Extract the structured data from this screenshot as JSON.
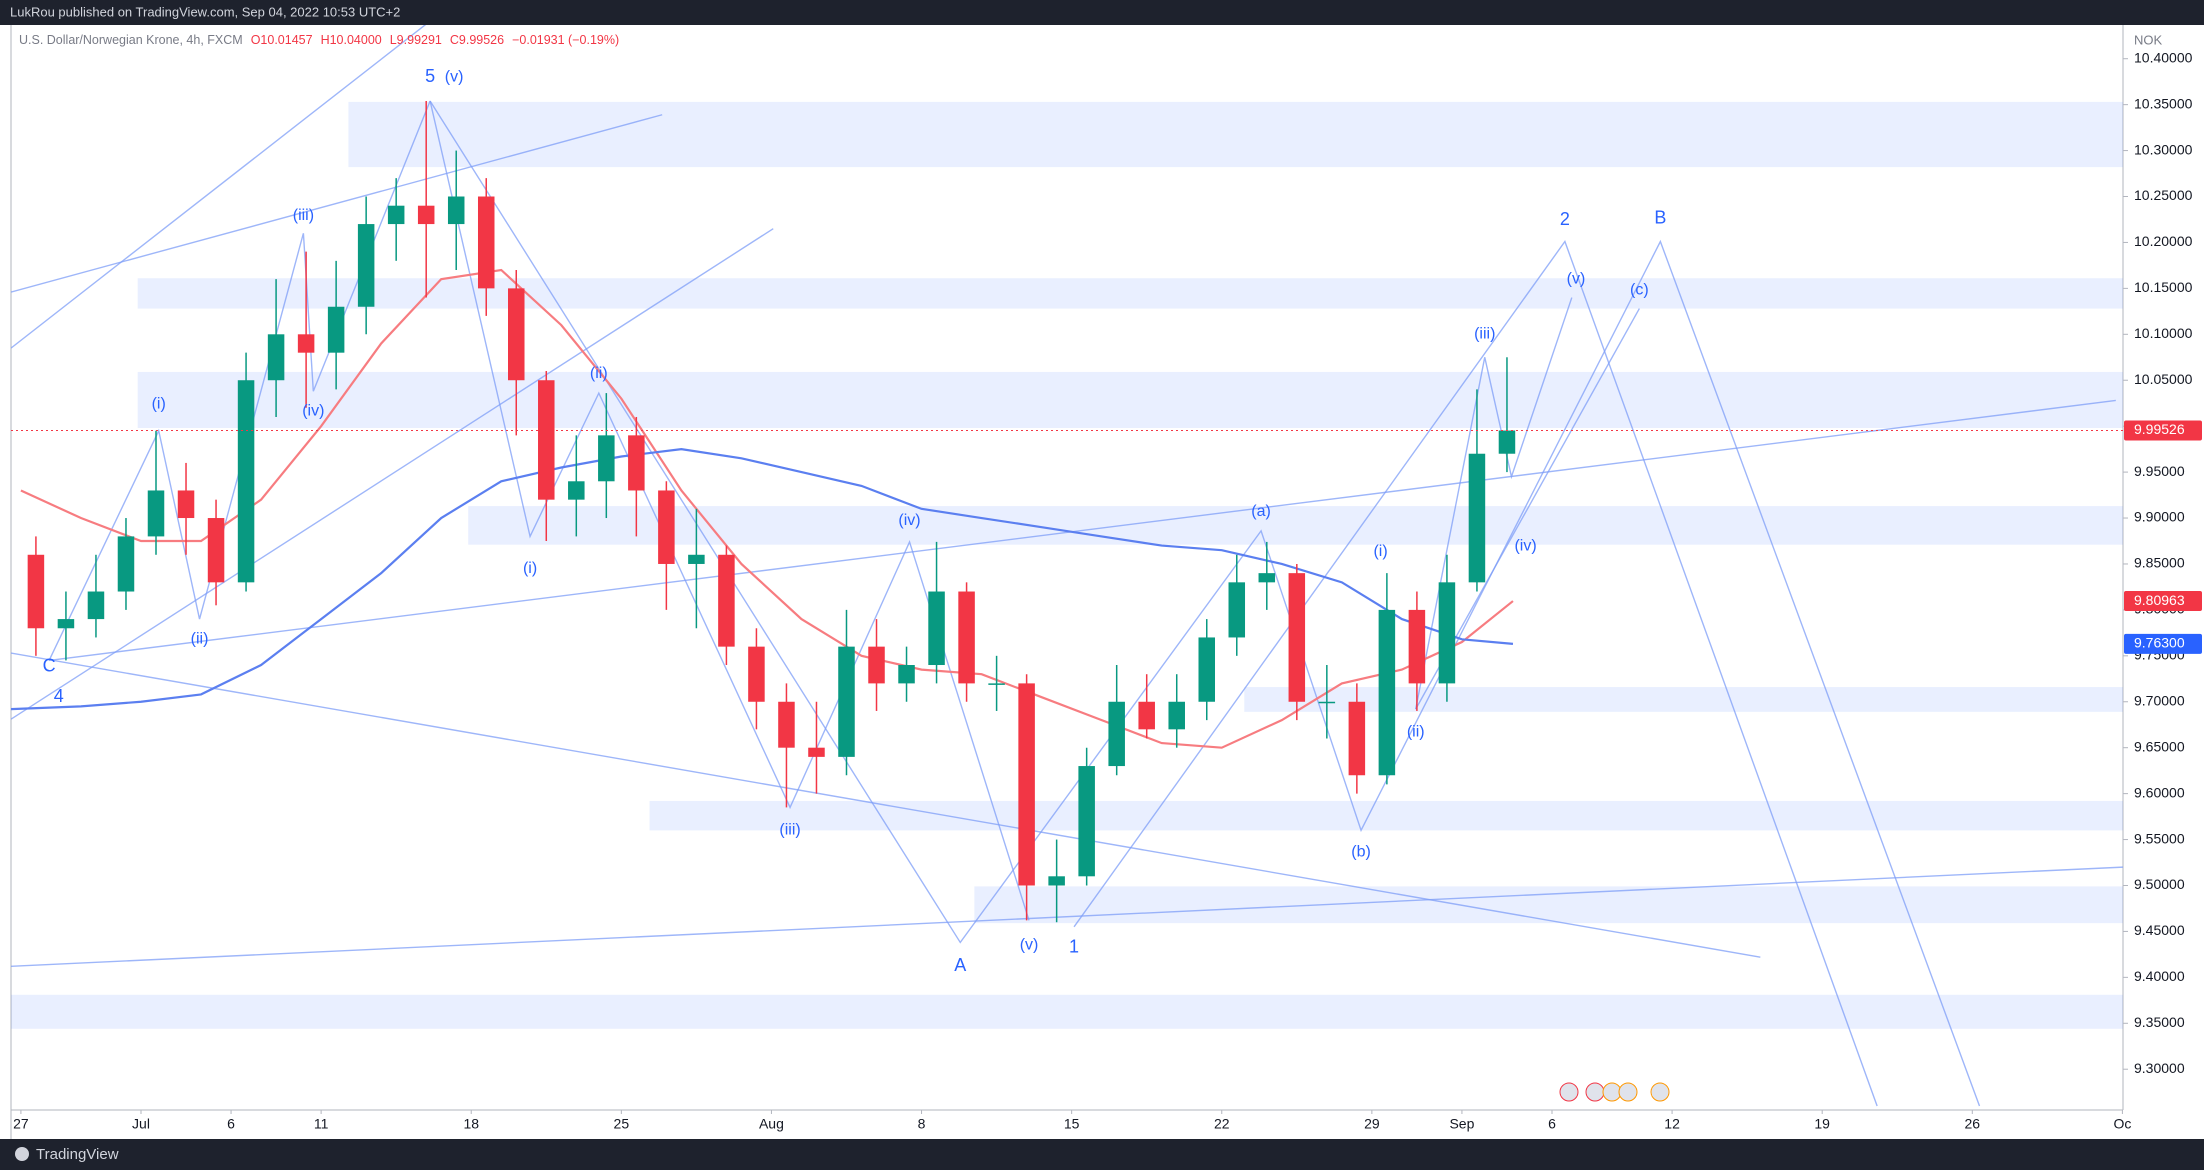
{
  "header": {
    "publisher": "LukRou published on TradingView.com, Sep 04, 2022 10:53 UTC+2",
    "symbol": "U.S. Dollar/Norwegian Krone, 4h, FXCM",
    "ohlc": [
      "O10.01457",
      "H10.04000",
      "L9.99291",
      "C9.99526",
      "−0.01931 (−0.19%)"
    ],
    "currency": "NOK"
  },
  "footer": {
    "brand": "TradingView"
  },
  "chart_data": {
    "type": "candlestick",
    "xlim": [
      -0.33,
      70.02
    ],
    "ylim": [
      9.2556,
      10.4367
    ],
    "grid": false,
    "xticks": [
      {
        "value": 0,
        "label": "27"
      },
      {
        "value": 4,
        "label": "Jul"
      },
      {
        "value": 7,
        "label": "6"
      },
      {
        "value": 10,
        "label": "11"
      },
      {
        "value": 15,
        "label": "18"
      },
      {
        "value": 20,
        "label": "25"
      },
      {
        "value": 25,
        "label": "Aug"
      },
      {
        "value": 30,
        "label": "8"
      },
      {
        "value": 35,
        "label": "15"
      },
      {
        "value": 40,
        "label": "22"
      },
      {
        "value": 45,
        "label": "29"
      },
      {
        "value": 48,
        "label": "Sep"
      },
      {
        "value": 51,
        "label": "6"
      },
      {
        "value": 55,
        "label": "12"
      },
      {
        "value": 60,
        "label": "19"
      },
      {
        "value": 65,
        "label": "26"
      },
      {
        "value": 70,
        "label": "Oc"
      }
    ],
    "yticks": [
      {
        "value": 9.3,
        "label": "9.30000"
      },
      {
        "value": 9.35,
        "label": "9.35000"
      },
      {
        "value": 9.4,
        "label": "9.40000"
      },
      {
        "value": 9.45,
        "label": "9.45000"
      },
      {
        "value": 9.5,
        "label": "9.50000"
      },
      {
        "value": 9.55,
        "label": "9.55000"
      },
      {
        "value": 9.6,
        "label": "9.60000"
      },
      {
        "value": 9.65,
        "label": "9.65000"
      },
      {
        "value": 9.7,
        "label": "9.70000"
      },
      {
        "value": 9.75,
        "label": "9.75000"
      },
      {
        "value": 9.8,
        "label": "9.80000"
      },
      {
        "value": 9.85,
        "label": "9.85000"
      },
      {
        "value": 9.9,
        "label": "9.90000"
      },
      {
        "value": 9.95,
        "label": "9.95000"
      },
      {
        "value": 10,
        "label": "10.00000"
      },
      {
        "value": 10.05,
        "label": "10.05000"
      },
      {
        "value": 10.1,
        "label": "10.10000"
      },
      {
        "value": 10.15,
        "label": "10.15000"
      },
      {
        "value": 10.2,
        "label": "10.20000"
      },
      {
        "value": 10.25,
        "label": "10.25000"
      },
      {
        "value": 10.3,
        "label": "10.30000"
      },
      {
        "value": 10.35,
        "label": "10.35000"
      },
      {
        "value": 10.4,
        "label": "10.40000"
      }
    ],
    "up_color": "#089981",
    "down_color": "#f23645",
    "x": [
      0.5,
      1.5,
      2.5,
      3.5,
      4.5,
      5.5,
      6.5,
      7.5,
      8.5,
      9.5,
      10.5,
      11.5,
      12.5,
      13.5,
      14.5,
      15.5,
      16.5,
      17.5,
      18.5,
      19.5,
      20.5,
      21.5,
      22.5,
      23.5,
      24.5,
      25.5,
      26.5,
      27.5,
      28.5,
      29.5,
      30.5,
      31.5,
      32.5,
      33.5,
      34.5,
      35.5,
      36.5,
      37.5,
      38.5,
      39.5,
      40.5,
      41.5,
      42.5,
      43.5,
      44.5,
      45.5,
      46.5,
      47.5,
      48.5,
      49.5
    ],
    "open": [
      9.86,
      9.78,
      9.79,
      9.82,
      9.88,
      9.93,
      9.9,
      9.83,
      10.05,
      10.1,
      10.08,
      10.13,
      10.22,
      10.24,
      10.22,
      10.25,
      10.15,
      10.05,
      9.92,
      9.94,
      9.99,
      9.93,
      9.85,
      9.86,
      9.76,
      9.7,
      9.65,
      9.64,
      9.76,
      9.72,
      9.74,
      9.82,
      9.72,
      9.72,
      9.5,
      9.51,
      9.63,
      9.7,
      9.67,
      9.7,
      9.77,
      9.83,
      9.84,
      9.7,
      9.7,
      9.62,
      9.8,
      9.72,
      9.83,
      9.97
    ],
    "high": [
      9.88,
      9.82,
      9.86,
      9.9,
      9.995,
      9.96,
      9.92,
      10.08,
      10.16,
      10.19,
      10.18,
      10.25,
      10.27,
      10.354,
      10.3,
      10.27,
      10.17,
      10.06,
      9.99,
      10.036,
      10.01,
      9.94,
      9.91,
      9.87,
      9.78,
      9.72,
      9.7,
      9.8,
      9.79,
      9.76,
      9.874,
      9.83,
      9.75,
      9.73,
      9.55,
      9.65,
      9.74,
      9.73,
      9.73,
      9.79,
      9.86,
      9.874,
      9.85,
      9.74,
      9.72,
      9.84,
      9.82,
      9.86,
      10.04,
      10.075
    ],
    "low": [
      9.75,
      9.745,
      9.77,
      9.8,
      9.86,
      9.86,
      9.805,
      9.82,
      10.01,
      10.02,
      10.04,
      10.1,
      10.18,
      10.14,
      10.17,
      10.12,
      9.99,
      9.875,
      9.88,
      9.9,
      9.88,
      9.8,
      9.78,
      9.74,
      9.67,
      9.585,
      9.6,
      9.62,
      9.69,
      9.7,
      9.72,
      9.7,
      9.69,
      9.462,
      9.46,
      9.5,
      9.62,
      9.66,
      9.65,
      9.68,
      9.75,
      9.8,
      9.68,
      9.66,
      9.6,
      9.61,
      9.69,
      9.7,
      9.82,
      9.95
    ],
    "close": [
      9.78,
      9.79,
      9.82,
      9.88,
      9.93,
      9.9,
      9.83,
      10.05,
      10.1,
      10.08,
      10.13,
      10.22,
      10.24,
      10.22,
      10.25,
      10.15,
      10.05,
      9.92,
      9.94,
      9.99,
      9.93,
      9.85,
      9.86,
      9.76,
      9.7,
      9.65,
      9.64,
      9.76,
      9.72,
      9.74,
      9.82,
      9.72,
      9.72,
      9.5,
      9.51,
      9.63,
      9.7,
      9.67,
      9.7,
      9.77,
      9.83,
      9.84,
      9.7,
      9.7,
      9.62,
      9.8,
      9.72,
      9.83,
      9.97,
      9.99526
    ],
    "overlays": [
      {
        "color": "#f77c80",
        "x": [
          0,
          2,
          4,
          6,
          8,
          10,
          12,
          14,
          16,
          18,
          20,
          22,
          24,
          26,
          28,
          30,
          32,
          34,
          36,
          38,
          40,
          42,
          44,
          46,
          48,
          49.7
        ],
        "values": [
          9.93,
          9.9,
          9.875,
          9.875,
          9.92,
          10.0,
          10.09,
          10.16,
          10.17,
          10.11,
          10.03,
          9.93,
          9.85,
          9.79,
          9.75,
          9.735,
          9.73,
          9.705,
          9.68,
          9.655,
          9.65,
          9.68,
          9.72,
          9.735,
          9.765,
          9.80963
        ]
      },
      {
        "color": "#5b7ff0",
        "x": [
          -0.33,
          2,
          4,
          6,
          8,
          10,
          12,
          14,
          16,
          18,
          20,
          22,
          24,
          26,
          28,
          30,
          32,
          34,
          36,
          38,
          40,
          42,
          44,
          46,
          48,
          49.7
        ],
        "values": [
          9.692,
          9.695,
          9.7,
          9.708,
          9.74,
          9.79,
          9.84,
          9.9,
          9.94,
          9.955,
          9.967,
          9.975,
          9.965,
          9.95,
          9.935,
          9.91,
          9.9,
          9.89,
          9.88,
          9.87,
          9.865,
          9.85,
          9.83,
          9.79,
          9.768,
          9.763
        ]
      }
    ],
    "price_labels": [
      {
        "value": 9.99526,
        "color": "#f23645"
      },
      {
        "value": 9.80963,
        "color": "#f23645"
      },
      {
        "value": 9.763,
        "label": "9.76300",
        "color": "#2962ff"
      }
    ],
    "zones": [
      {
        "x0": 10.91,
        "y0": 10.282,
        "y1": 10.353
      },
      {
        "x0": 3.89,
        "y0": 10.128,
        "y1": 10.161
      },
      {
        "x0": 3.89,
        "y0": 9.998,
        "y1": 10.059
      },
      {
        "x0": 14.9,
        "y0": 9.871,
        "y1": 9.913
      },
      {
        "x0": 40.75,
        "y0": 9.689,
        "y1": 9.716
      },
      {
        "x0": 20.94,
        "y0": 9.56,
        "y1": 9.592
      },
      {
        "x0": 31.76,
        "y0": 9.459,
        "y1": 9.499
      },
      {
        "x0": -0.33,
        "y0": 9.344,
        "y1": 9.381
      }
    ],
    "trend_lines": [
      {
        "x": [
          -0.33,
          13.63
        ],
        "y": [
          10.085,
          10.441
        ]
      },
      {
        "x": [
          -0.33,
          21.36
        ],
        "y": [
          10.146,
          10.339
        ]
      },
      {
        "x": [
          -0.33,
          25.06
        ],
        "y": [
          9.681,
          10.215
        ]
      },
      {
        "x": [
          -0.33,
          57.94
        ],
        "y": [
          9.753,
          9.422
        ]
      },
      {
        "x": [
          -0.33,
          70.02
        ],
        "y": [
          9.412,
          9.52
        ]
      },
      {
        "x": [
          0.94,
          69.78
        ],
        "y": [
          9.745,
          10.028
        ]
      },
      {
        "x": [
          0.94,
          4.59,
          5.95,
          9.41,
          9.74,
          13.63
        ],
        "y": [
          9.745,
          9.995,
          9.79,
          10.21,
          10.038,
          10.354
        ]
      },
      {
        "x": [
          13.63,
          16.96,
          19.25,
          25.62,
          29.6,
          33.58
        ],
        "y": [
          10.354,
          9.88,
          10.036,
          9.585,
          9.874,
          9.462
        ]
      },
      {
        "x": [
          13.63,
          31.29,
          41.31,
          44.64,
          54.61,
          65.24
        ],
        "y": [
          10.354,
          9.438,
          9.886,
          9.56,
          10.201,
          9.26
        ]
      },
      {
        "x": [
          35.08,
          51.43,
          61.83
        ],
        "y": [
          9.455,
          10.201,
          9.26
        ]
      },
      {
        "x": [
          46.46,
          48.76,
          49.65,
          51.66
        ],
        "y": [
          9.692,
          10.075,
          9.945,
          10.14
        ]
      },
      {
        "x": [
          46.46,
          53.91
        ],
        "y": [
          9.692,
          10.128
        ]
      }
    ],
    "wave_labels": [
      {
        "text": "5",
        "x": 13.63,
        "y": 10.38
      },
      {
        "text": "(v)",
        "x": 14.43,
        "y": 10.38
      },
      {
        "text": "(iii)",
        "x": 9.41,
        "y": 10.229
      },
      {
        "text": "(i)",
        "x": 4.59,
        "y": 10.024
      },
      {
        "text": "(iv)",
        "x": 9.74,
        "y": 10.016
      },
      {
        "text": "(ii)",
        "x": 5.95,
        "y": 9.768
      },
      {
        "text": "C",
        "x": 0.94,
        "y": 9.738
      },
      {
        "text": "4",
        "x": 1.26,
        "y": 9.705
      },
      {
        "text": "(ii)",
        "x": 19.25,
        "y": 10.057
      },
      {
        "text": "(i)",
        "x": 16.96,
        "y": 9.845
      },
      {
        "text": "(iii)",
        "x": 25.62,
        "y": 9.56
      },
      {
        "text": "(iv)",
        "x": 29.6,
        "y": 9.897
      },
      {
        "text": "A",
        "x": 31.29,
        "y": 9.412
      },
      {
        "text": "(v)",
        "x": 33.58,
        "y": 9.435
      },
      {
        "text": "1",
        "x": 35.08,
        "y": 9.432
      },
      {
        "text": "(a)",
        "x": 41.31,
        "y": 9.907
      },
      {
        "text": "(b)",
        "x": 44.64,
        "y": 9.536
      },
      {
        "text": "(i)",
        "x": 45.29,
        "y": 9.863
      },
      {
        "text": "(ii)",
        "x": 46.46,
        "y": 9.667
      },
      {
        "text": "(iii)",
        "x": 48.76,
        "y": 10.1
      },
      {
        "text": "(iv)",
        "x": 50.12,
        "y": 9.869
      },
      {
        "text": "(v)",
        "x": 51.8,
        "y": 10.16
      },
      {
        "text": "2",
        "x": 51.43,
        "y": 10.224
      },
      {
        "text": "B",
        "x": 54.61,
        "y": 10.226
      },
      {
        "text": "(c)",
        "x": 53.91,
        "y": 10.148
      }
    ]
  }
}
